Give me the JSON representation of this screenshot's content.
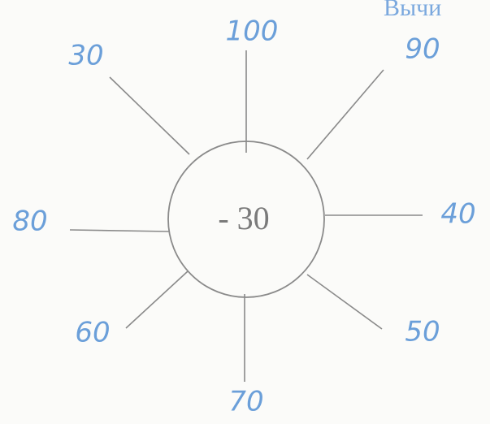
{
  "header_fragment": "Вычи",
  "center": "- 30",
  "rays": [
    {
      "label": "100"
    },
    {
      "label": "90"
    },
    {
      "label": "40"
    },
    {
      "label": "50"
    },
    {
      "label": "70"
    },
    {
      "label": "60"
    },
    {
      "label": "80"
    },
    {
      "label": "30"
    }
  ]
}
